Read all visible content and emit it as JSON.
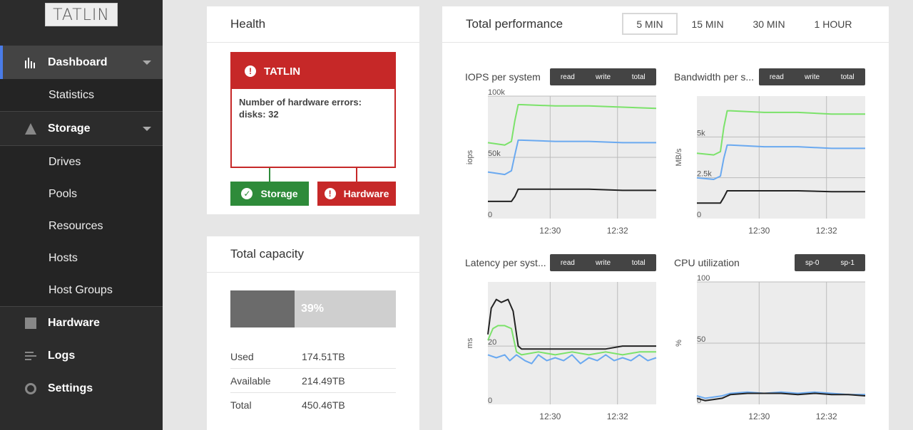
{
  "sidebar": {
    "logo": "TATLIN",
    "dashboard": "Dashboard",
    "statistics": "Statistics",
    "storage": "Storage",
    "storage_items": [
      "Drives",
      "Pools",
      "Resources",
      "Hosts",
      "Host Groups"
    ],
    "hardware": "Hardware",
    "logs": "Logs",
    "settings": "Settings"
  },
  "health": {
    "title": "Health",
    "alert_title": "TATLIN",
    "alert_message": "Number of hardware errors: disks: 32",
    "storage_label": "Storage",
    "hardware_label": "Hardware",
    "colors": {
      "error": "#c62828",
      "ok": "#2e8b3a"
    }
  },
  "capacity": {
    "title": "Total capacity",
    "used_fraction": 0.39,
    "percent_label": "39%",
    "rows": [
      {
        "label": "Used",
        "value": "174.51TB"
      },
      {
        "label": "Available",
        "value": "214.49TB"
      },
      {
        "label": "Total",
        "value": "450.46TB"
      }
    ]
  },
  "performance": {
    "title": "Total performance",
    "ranges": [
      "5 MIN",
      "15 MIN",
      "30 MIN",
      "1 HOUR"
    ],
    "active_range": "5 MIN",
    "series_colors": {
      "read": "#7be26a",
      "write": "#6aa9f0",
      "total": "#222222",
      "sp0": "#6aa9f0",
      "sp1": "#222222"
    }
  },
  "chart_data": [
    {
      "type": "line",
      "title": "IOPS per system",
      "toggles": [
        "read",
        "write",
        "total"
      ],
      "ylabel": "iops",
      "ylim": [
        0,
        100000
      ],
      "yticks": [
        "0",
        "50k",
        "100k"
      ],
      "xticks": [
        "12:30",
        "12:32"
      ],
      "xlim": [
        0,
        1
      ],
      "xtick_pos": [
        0.37,
        0.77
      ],
      "series": [
        {
          "key": "read",
          "x": [
            0,
            0.1,
            0.14,
            0.16,
            0.18,
            0.2,
            0.4,
            0.6,
            0.8,
            1
          ],
          "y": [
            62000,
            60000,
            63000,
            80000,
            93000,
            93000,
            92000,
            92000,
            91000,
            90000
          ]
        },
        {
          "key": "write",
          "x": [
            0,
            0.1,
            0.14,
            0.16,
            0.18,
            0.2,
            0.4,
            0.6,
            0.8,
            1
          ],
          "y": [
            38000,
            36000,
            39000,
            52000,
            64000,
            64000,
            63000,
            63000,
            62000,
            62000
          ]
        },
        {
          "key": "total",
          "x": [
            0,
            0.1,
            0.14,
            0.16,
            0.18,
            0.2,
            0.4,
            0.6,
            0.8,
            1
          ],
          "y": [
            14000,
            14000,
            14000,
            18000,
            24000,
            24000,
            24000,
            24000,
            23000,
            23000
          ]
        }
      ]
    },
    {
      "type": "line",
      "title": "Bandwidth per s...",
      "toggles": [
        "read",
        "write",
        "total"
      ],
      "ylabel": "MB/s",
      "ylim": [
        0,
        7500
      ],
      "yticks": [
        "0",
        "2.5k",
        "5k"
      ],
      "xticks": [
        "12:30",
        "12:32"
      ],
      "xlim": [
        0,
        1
      ],
      "xtick_pos": [
        0.37,
        0.77
      ],
      "series": [
        {
          "key": "read",
          "x": [
            0,
            0.1,
            0.14,
            0.16,
            0.18,
            0.2,
            0.4,
            0.6,
            0.8,
            1
          ],
          "y": [
            4000,
            3900,
            4100,
            5600,
            6600,
            6600,
            6500,
            6500,
            6400,
            6400
          ]
        },
        {
          "key": "write",
          "x": [
            0,
            0.1,
            0.14,
            0.16,
            0.18,
            0.2,
            0.4,
            0.6,
            0.8,
            1
          ],
          "y": [
            2500,
            2400,
            2600,
            3700,
            4500,
            4500,
            4400,
            4400,
            4300,
            4300
          ]
        },
        {
          "key": "total",
          "x": [
            0,
            0.1,
            0.14,
            0.16,
            0.18,
            0.2,
            0.4,
            0.6,
            0.8,
            1
          ],
          "y": [
            950,
            950,
            950,
            1300,
            1700,
            1700,
            1700,
            1700,
            1650,
            1650
          ]
        }
      ]
    },
    {
      "type": "line",
      "title": "Latency per syst...",
      "toggles": [
        "read",
        "write",
        "total"
      ],
      "ylabel": "ms",
      "ylim": [
        0,
        42
      ],
      "yticks": [
        "0",
        "20"
      ],
      "xticks": [
        "12:30",
        "12:32"
      ],
      "xlim": [
        0,
        1
      ],
      "xtick_pos": [
        0.37,
        0.77
      ],
      "series": [
        {
          "key": "read",
          "x": [
            0,
            0.03,
            0.06,
            0.1,
            0.14,
            0.17,
            0.2,
            0.3,
            0.4,
            0.5,
            0.6,
            0.7,
            0.8,
            0.9,
            1
          ],
          "y": [
            22,
            26,
            27,
            27,
            26,
            18,
            17,
            18,
            17,
            18,
            17,
            18,
            17,
            18,
            18
          ]
        },
        {
          "key": "write",
          "x": [
            0,
            0.05,
            0.1,
            0.13,
            0.17,
            0.22,
            0.26,
            0.3,
            0.35,
            0.4,
            0.45,
            0.5,
            0.55,
            0.6,
            0.65,
            0.7,
            0.75,
            0.8,
            0.85,
            0.9,
            0.95,
            1
          ],
          "y": [
            17,
            16,
            17,
            15,
            17,
            15,
            14,
            17,
            15,
            16,
            15,
            17,
            14,
            16,
            15,
            17,
            15,
            16,
            15,
            17,
            15,
            16
          ]
        },
        {
          "key": "total",
          "x": [
            0,
            0.02,
            0.05,
            0.08,
            0.12,
            0.15,
            0.18,
            0.2,
            0.3,
            0.4,
            0.5,
            0.6,
            0.7,
            0.8,
            0.9,
            1
          ],
          "y": [
            24,
            33,
            36,
            35,
            36,
            32,
            20,
            19,
            19,
            19,
            19,
            19,
            19,
            20,
            20,
            20
          ]
        }
      ]
    },
    {
      "type": "line",
      "title": "CPU utilization",
      "toggles": [
        "sp-0",
        "sp-1"
      ],
      "ylabel": "%",
      "ylim": [
        0,
        100
      ],
      "yticks": [
        "0",
        "50",
        "100"
      ],
      "xticks": [
        "12:30",
        "12:32"
      ],
      "xlim": [
        0,
        1
      ],
      "xtick_pos": [
        0.37,
        0.77
      ],
      "series": [
        {
          "key": "sp0",
          "x": [
            0,
            0.05,
            0.1,
            0.15,
            0.2,
            0.3,
            0.4,
            0.5,
            0.6,
            0.7,
            0.8,
            0.9,
            1
          ],
          "y": [
            7,
            5,
            6,
            7,
            9,
            10,
            9,
            10,
            9,
            10,
            9,
            8,
            8
          ]
        },
        {
          "key": "sp1",
          "x": [
            0,
            0.05,
            0.1,
            0.15,
            0.2,
            0.3,
            0.4,
            0.5,
            0.6,
            0.7,
            0.8,
            0.9,
            1
          ],
          "y": [
            5,
            3,
            4,
            5,
            8,
            9,
            9,
            9,
            8,
            9,
            8,
            8,
            7
          ]
        }
      ]
    }
  ]
}
